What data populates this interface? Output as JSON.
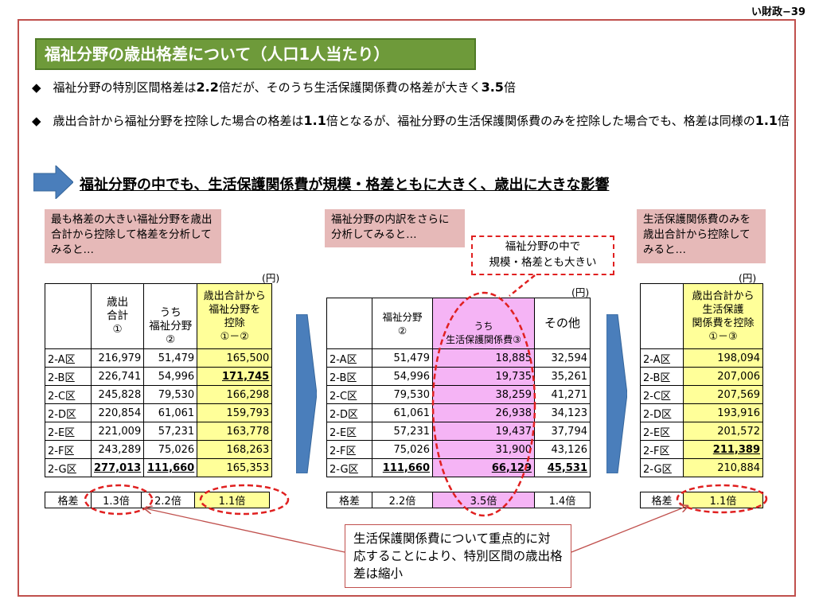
{
  "page_id": "い財政−39",
  "title": "福祉分野の歳出格差について（人口1人当たり）",
  "bullets": {
    "b1_prefix": "◆　福祉分野の特別区間格差は",
    "b1_bold1": "2.2",
    "b1_mid": "倍だが、そのうち生活保護関係費の格差が大きく",
    "b1_bold2": "3.5",
    "b1_suffix": "倍",
    "b2_prefix": "◆　歳出合計から福祉分野を控除した場合の格差は",
    "b2_bold1": "1.1",
    "b2_mid": "倍となるが、福祉分野の生活保護関係費のみを控除した場合でも、格差は同様の",
    "b2_bold2": "1.1",
    "b2_suffix": "倍"
  },
  "headline": "福祉分野の中でも、生活保護関係費が規模・格差ともに大きく、歳出に大きな影響",
  "boxes": {
    "left": "最も格差の大きい福祉分野を歳出合計から控除して格差を分析してみると…",
    "middle": "福祉分野の内訳をさらに分析してみると…",
    "right": "生活保護関係費のみを歳出合計から控除してみると…",
    "highlight_l1": "福祉分野の中で",
    "highlight_l2": "規模・格差とも大きい"
  },
  "unit": "(円)",
  "ratio_label": "格差",
  "t1": {
    "h1_l1": "歳出",
    "h1_l2": "合計",
    "h1_l3": "①",
    "h2_l1": "うち",
    "h2_l2": "福祉分野",
    "h2_l3": "②",
    "h3_l1": "歳出合計から",
    "h3_l2": "福祉分野を",
    "h3_l3": "控除",
    "h3_l4": "①－②",
    "rows": [
      {
        "ward": "2-A区",
        "c1": "216,979",
        "c2": "51,479",
        "c3": "165,500"
      },
      {
        "ward": "2-B区",
        "c1": "226,741",
        "c2": "54,996",
        "c3": "171,745"
      },
      {
        "ward": "2-C区",
        "c1": "245,828",
        "c2": "79,530",
        "c3": "166,298"
      },
      {
        "ward": "2-D区",
        "c1": "220,854",
        "c2": "61,061",
        "c3": "159,793"
      },
      {
        "ward": "2-E区",
        "c1": "221,009",
        "c2": "57,231",
        "c3": "163,778"
      },
      {
        "ward": "2-F区",
        "c1": "243,289",
        "c2": "75,026",
        "c3": "168,263"
      },
      {
        "ward": "2-G区",
        "c1": "277,013",
        "c2": "111,660",
        "c3": "165,353"
      }
    ],
    "ratio": {
      "c1": "1.3倍",
      "c2": "2.2倍",
      "c3": "1.1倍"
    }
  },
  "t2": {
    "h1_l1": "福祉分野",
    "h1_l2": "②",
    "h2_l1": "うち",
    "h2_l2": "生活保護関係費③",
    "h3": "その他",
    "rows": [
      {
        "ward": "2-A区",
        "c1": "51,479",
        "c2": "18,885",
        "c3": "32,594"
      },
      {
        "ward": "2-B区",
        "c1": "54,996",
        "c2": "19,735",
        "c3": "35,261"
      },
      {
        "ward": "2-C区",
        "c1": "79,530",
        "c2": "38,259",
        "c3": "41,271"
      },
      {
        "ward": "2-D区",
        "c1": "61,061",
        "c2": "26,938",
        "c3": "34,123"
      },
      {
        "ward": "2-E区",
        "c1": "57,231",
        "c2": "19,437",
        "c3": "37,794"
      },
      {
        "ward": "2-F区",
        "c1": "75,026",
        "c2": "31,900",
        "c3": "43,126"
      },
      {
        "ward": "2-G区",
        "c1": "111,660",
        "c2": "66,129",
        "c3": "45,531"
      }
    ],
    "ratio": {
      "c1": "2.2倍",
      "c2": "3.5倍",
      "c3": "1.4倍"
    }
  },
  "t3": {
    "h_l1": "歳出合計から",
    "h_l2": "生活保護",
    "h_l3": "関係費を控除",
    "h_l4": "①－③",
    "rows": [
      {
        "ward": "2-A区",
        "c1": "198,094"
      },
      {
        "ward": "2-B区",
        "c1": "207,006"
      },
      {
        "ward": "2-C区",
        "c1": "207,569"
      },
      {
        "ward": "2-D区",
        "c1": "193,916"
      },
      {
        "ward": "2-E区",
        "c1": "201,572"
      },
      {
        "ward": "2-F区",
        "c1": "211,389"
      },
      {
        "ward": "2-G区",
        "c1": "210,884"
      }
    ],
    "ratio": {
      "c1": "1.1倍"
    }
  },
  "callout": "生活保護関係費について重点的に対応することにより、特別区間の歳出格差は縮小",
  "colors": {
    "title_bg": "#6e9a3a",
    "frame": "#c0504d",
    "arrow": "#4a7ebb",
    "highlight_yellow": "#ffff99",
    "highlight_pink": "#f5b4f5",
    "dash_red": "#e02020"
  }
}
